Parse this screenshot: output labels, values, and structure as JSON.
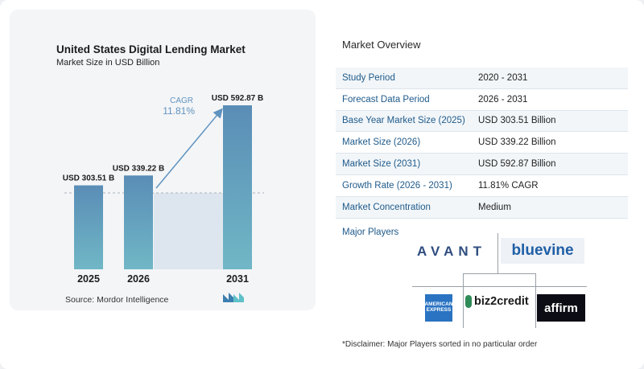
{
  "chart_data": {
    "type": "bar",
    "title": "United States Digital Lending Market",
    "subtitle": "Market Size in USD Billion",
    "categories": [
      "2025",
      "2026",
      "2031"
    ],
    "values": [
      303.51,
      339.22,
      592.87
    ],
    "value_labels": [
      "USD 303.51 B",
      "USD 339.22 B",
      "USD 592.87 B"
    ],
    "cagr_label": "CAGR",
    "cagr_value": "11.81%",
    "bar_color": "#5b90b8",
    "bar_color_light": "#6fb3c4",
    "xlabel": "",
    "ylabel": ""
  },
  "source": "Source:  Mordor Intelligence",
  "overview": {
    "title": "Market Overview",
    "rows": [
      {
        "label": "Study Period",
        "value": "2020 - 2031"
      },
      {
        "label": "Forecast Data Period",
        "value": "2026 - 2031"
      },
      {
        "label": "Base Year Market Size (2025)",
        "value": "USD 303.51 Billion"
      },
      {
        "label": "Market Size (2026)",
        "value": "USD 339.22 Billion"
      },
      {
        "label": "Market Size (2031)",
        "value": "USD 592.87 Billion"
      },
      {
        "label": "Growth Rate (2026 - 2031)",
        "value": "11.81% CAGR"
      },
      {
        "label": "Market Concentration",
        "value": "Medium"
      }
    ],
    "players_label": "Major Players",
    "players": {
      "avant": "AVANT",
      "bluevine": "bluevine",
      "amex_line1": "AMERICAN",
      "amex_line2": "EXPRESS",
      "biz2credit": "biz2credit",
      "affirm": "affirm"
    },
    "disclaimer": "*Disclaimer: Major Players sorted in no particular order"
  },
  "colors": {
    "accent": "#1f5a8a",
    "bar": "#5b90b8",
    "arrow": "#5f93c0"
  }
}
